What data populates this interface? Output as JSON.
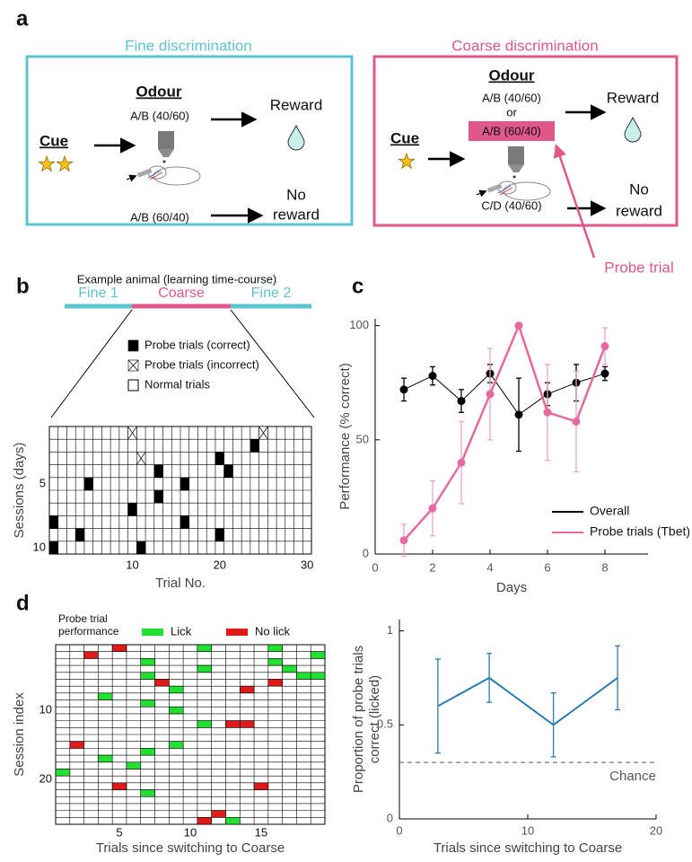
{
  "panel_labels": [
    "a",
    "b",
    "c",
    "d"
  ],
  "diagram": {
    "fine": {
      "title": "Fine discrimination",
      "odour": "Odour",
      "cue": "Cue",
      "odour_1": "A/B (40/60)",
      "odour_2": "A/B (60/40)",
      "outcome_1": "Reward",
      "outcome_2": [
        "No",
        "reward"
      ]
    },
    "coarse": {
      "title": "Coarse discrimination",
      "odour": "Odour",
      "cue": "Cue",
      "odour_1": "A/B (40/60)",
      "or": "or",
      "probe_odour": "A/B (60/40)",
      "odour_2": "C/D (40/60)",
      "outcome_1": "Reward",
      "outcome_2": [
        "No",
        "reward"
      ],
      "probe_label": "Probe trial"
    }
  },
  "chart_data": [
    {
      "type": "grid",
      "title": "Example animal (learning time-course)",
      "phases": [
        {
          "name": "Fine 1",
          "color": "#5bc4d1"
        },
        {
          "name": "Coarse",
          "color": "#e0578a"
        },
        {
          "name": "Fine 2",
          "color": "#5bc4d1"
        }
      ],
      "xlabel": "Trial No.",
      "ylabel": "Sessions (days)",
      "xlim": [
        0.5,
        30.5
      ],
      "ylim": [
        10.5,
        0.5
      ],
      "xticks": [
        10,
        20,
        30
      ],
      "yticks": [
        5,
        10
      ],
      "series": [
        {
          "name": "Probe trials (correct)",
          "color": "#000000",
          "x": [
            24,
            20,
            13,
            21,
            5,
            16,
            13,
            10,
            1,
            16,
            4,
            20,
            1,
            11
          ],
          "y": [
            2,
            3,
            4,
            4,
            5,
            5,
            6,
            7,
            8,
            8,
            9,
            9,
            10,
            10
          ]
        },
        {
          "name": "Probe trials (incorrect)",
          "color": "#ffffff",
          "marker": "cross",
          "x": [
            10,
            25,
            11
          ],
          "y": [
            1,
            1,
            3
          ]
        }
      ],
      "background_name": "Normal trials"
    },
    {
      "type": "line",
      "xlabel": "Days",
      "ylabel": "Performance (% correct)",
      "x": [
        1,
        2,
        3,
        4,
        5,
        6,
        7,
        8
      ],
      "xlim": [
        0,
        9.5
      ],
      "ylim": [
        0,
        103
      ],
      "xticks": [
        0,
        2,
        4,
        6,
        8
      ],
      "yticks": [
        0,
        50,
        100
      ],
      "series": [
        {
          "name": "Overall",
          "color": "#000000",
          "error_color": "#000000",
          "line_width": 1,
          "values": [
            72,
            78,
            67,
            79,
            61,
            70,
            75,
            79
          ],
          "errors": [
            5,
            4,
            5,
            4,
            16,
            5,
            8,
            3
          ]
        },
        {
          "name": "Probe trials (Tbet)",
          "color": "#e66aa0",
          "error_color": "#f0a3c3",
          "line_width": 2.5,
          "values": [
            6,
            20,
            40,
            70,
            100,
            62,
            58,
            91
          ],
          "errors": [
            7,
            12,
            18,
            20,
            0,
            21,
            22,
            8
          ]
        }
      ]
    },
    {
      "type": "grid",
      "legend_title": [
        "Probe trial",
        "performance"
      ],
      "xlabel": "Trials since switching to Coarse",
      "ylabel": "Session index",
      "xlim": [
        0.5,
        19.5
      ],
      "ylim": [
        26.5,
        0.5
      ],
      "xticks": [
        5,
        10,
        15
      ],
      "yticks": [
        10,
        20
      ],
      "series": [
        {
          "name": "Lick",
          "color": "#22e032",
          "x": [
            11,
            16,
            19,
            7,
            16,
            11,
            17,
            7,
            18,
            19,
            9,
            4,
            7,
            9,
            11,
            9,
            7,
            4,
            6,
            1,
            7,
            13
          ],
          "y": [
            1,
            1,
            2,
            3,
            3,
            4,
            4,
            5,
            5,
            5,
            7,
            8,
            9,
            10,
            12,
            15,
            16,
            17,
            18,
            19,
            22,
            26
          ]
        },
        {
          "name": "No lick",
          "color": "#e01919",
          "x": [
            5,
            3,
            8,
            16,
            14,
            13,
            14,
            2,
            5,
            15,
            12,
            11
          ],
          "y": [
            1,
            2,
            6,
            6,
            7,
            12,
            12,
            15,
            21,
            21,
            25,
            26
          ]
        }
      ]
    },
    {
      "type": "line",
      "xlabel": "Trials since switching to Coarse",
      "ylabel": [
        "Proportion of probe trials",
        "correct (licked)"
      ],
      "x": [
        3,
        7,
        12,
        17
      ],
      "xlim": [
        0,
        20
      ],
      "ylim": [
        0,
        1.06
      ],
      "xticks": [
        0,
        10,
        20
      ],
      "yticks": [
        0,
        0.5,
        1
      ],
      "series": [
        {
          "color": "#2a7ab5",
          "error_color": "#2a7ab5",
          "line_width": 2,
          "values": [
            0.6,
            0.75,
            0.5,
            0.75
          ],
          "errors": [
            0.25,
            0.13,
            0.17,
            0.17
          ]
        }
      ],
      "reference": {
        "value": 0.3,
        "label": "Chance"
      }
    }
  ]
}
